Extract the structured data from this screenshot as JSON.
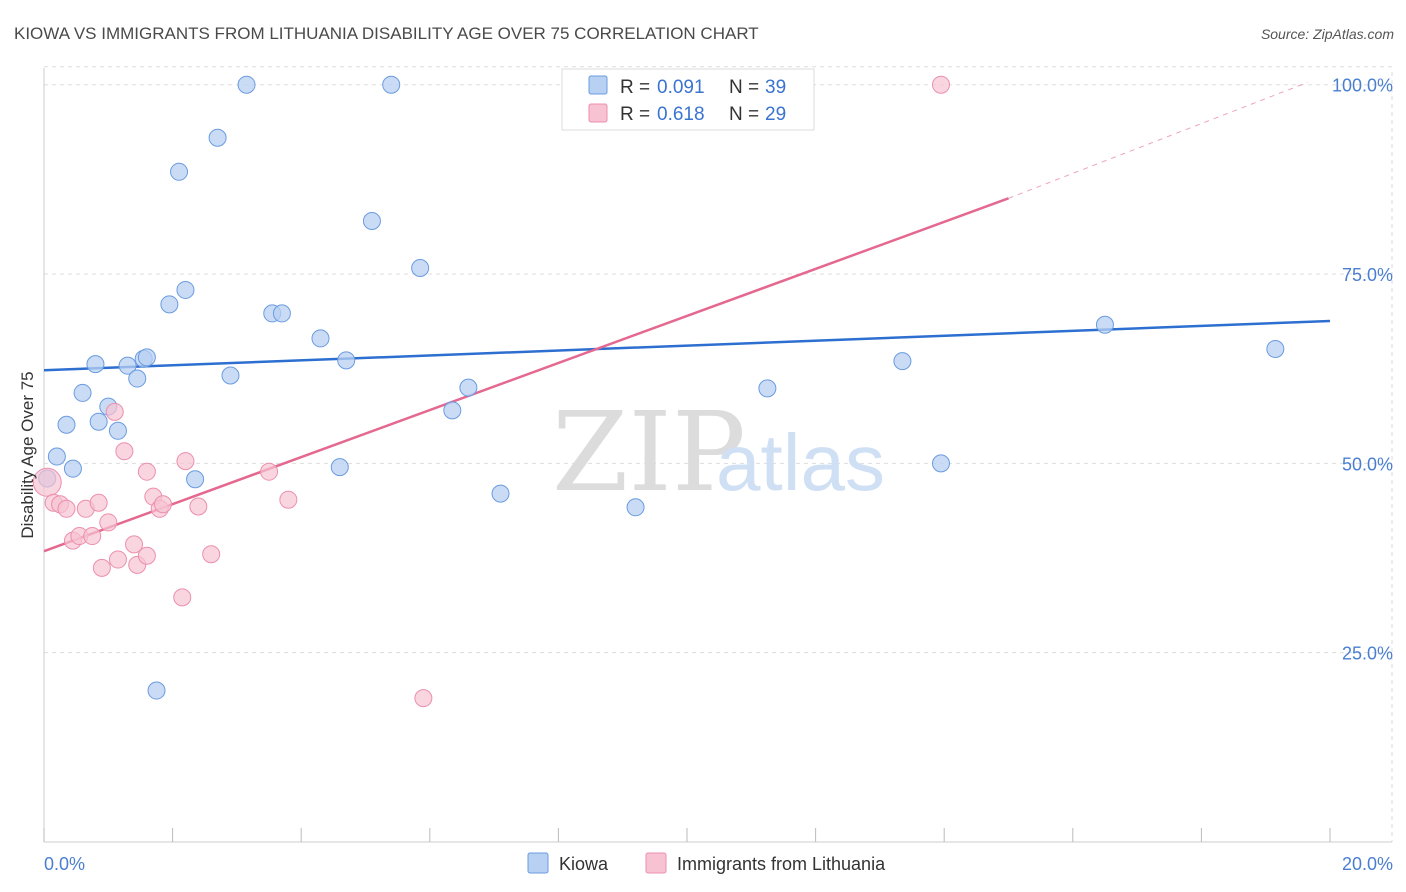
{
  "title": "KIOWA VS IMMIGRANTS FROM LITHUANIA DISABILITY AGE OVER 75 CORRELATION CHART",
  "source": "Source: ZipAtlas.com",
  "watermark": {
    "zip": "ZIP",
    "atlas": "atlas"
  },
  "legend_box": {
    "rows": [
      {
        "r_label": "R =",
        "r_value": "0.091",
        "n_label": "N =",
        "n_value": "39"
      },
      {
        "r_label": "R =",
        "r_value": "0.618",
        "n_label": "N =",
        "n_value": "29"
      }
    ]
  },
  "colors": {
    "kiowa_fill": "#b8d0f2",
    "kiowa_stroke": "#6a9be0",
    "kiowa_line": "#2d6fd0",
    "lith_fill": "#f7c3d3",
    "lith_stroke": "#ec8fae",
    "lith_line": "#e4688f",
    "grid": "#dddddd",
    "axis_text": "#4a7fd0"
  },
  "chart_data": {
    "type": "scatter",
    "title": "KIOWA VS IMMIGRANTS FROM LITHUANIA DISABILITY AGE OVER 75 CORRELATION CHART",
    "xlabel": "",
    "ylabel": "Disability Age Over 75",
    "xlim": [
      0,
      20
    ],
    "ylim": [
      0,
      103
    ],
    "x_ticks": [
      "0.0%",
      "20.0%"
    ],
    "y_ticks": [
      {
        "value": 25,
        "label": "25.0%"
      },
      {
        "value": 50,
        "label": "50.0%"
      },
      {
        "value": 75,
        "label": "75.0%"
      },
      {
        "value": 100,
        "label": "100.0%"
      }
    ],
    "grid": true,
    "legend_position": "bottom",
    "series": [
      {
        "name": "Kiowa",
        "r": 0.091,
        "n": 39,
        "trend": {
          "x0": 0,
          "y0": 62.3,
          "x1": 20,
          "y1": 68.8
        },
        "points": [
          [
            0.05,
            48.0
          ],
          [
            0.2,
            50.9
          ],
          [
            0.35,
            55.1
          ],
          [
            0.45,
            49.3
          ],
          [
            0.6,
            59.3
          ],
          [
            0.8,
            63.1
          ],
          [
            0.85,
            55.5
          ],
          [
            1.0,
            57.5
          ],
          [
            1.15,
            54.3
          ],
          [
            1.3,
            62.9
          ],
          [
            1.45,
            61.2
          ],
          [
            1.55,
            63.8
          ],
          [
            1.6,
            64.0
          ],
          [
            1.75,
            20.0
          ],
          [
            1.95,
            71.0
          ],
          [
            2.1,
            88.5
          ],
          [
            2.2,
            72.9
          ],
          [
            2.35,
            47.9
          ],
          [
            2.7,
            93.0
          ],
          [
            2.9,
            61.6
          ],
          [
            3.15,
            100.0
          ],
          [
            3.55,
            69.8
          ],
          [
            3.7,
            69.8
          ],
          [
            4.3,
            66.5
          ],
          [
            4.6,
            49.5
          ],
          [
            4.7,
            63.6
          ],
          [
            5.1,
            82.0
          ],
          [
            5.4,
            100.0
          ],
          [
            5.85,
            75.8
          ],
          [
            6.35,
            57.0
          ],
          [
            6.6,
            60.0
          ],
          [
            7.1,
            46.0
          ],
          [
            9.2,
            44.2
          ],
          [
            9.45,
            100.0
          ],
          [
            11.25,
            59.9
          ],
          [
            13.35,
            63.5
          ],
          [
            13.95,
            50.0
          ],
          [
            16.5,
            68.3
          ],
          [
            19.15,
            65.1
          ]
        ]
      },
      {
        "name": "Immigrants from Lithuania",
        "r": 0.618,
        "n": 29,
        "trend": {
          "x0": 0,
          "y0": 38.4,
          "x1": 15.0,
          "y1": 85.0,
          "dash_to_x": 19.65,
          "dash_to_y": 100.3
        },
        "points": [
          [
            0.05,
            47.5
          ],
          [
            0.15,
            44.8
          ],
          [
            0.25,
            44.6
          ],
          [
            0.35,
            44.0
          ],
          [
            0.45,
            39.8
          ],
          [
            0.55,
            40.4
          ],
          [
            0.65,
            44.0
          ],
          [
            0.75,
            40.4
          ],
          [
            0.85,
            44.8
          ],
          [
            0.9,
            36.2
          ],
          [
            1.0,
            42.2
          ],
          [
            1.1,
            56.8
          ],
          [
            1.15,
            37.3
          ],
          [
            1.25,
            51.6
          ],
          [
            1.4,
            39.3
          ],
          [
            1.45,
            36.6
          ],
          [
            1.6,
            48.9
          ],
          [
            1.6,
            37.8
          ],
          [
            1.7,
            45.6
          ],
          [
            1.8,
            44.0
          ],
          [
            1.85,
            44.6
          ],
          [
            2.15,
            32.3
          ],
          [
            2.2,
            50.3
          ],
          [
            2.4,
            44.3
          ],
          [
            2.6,
            38.0
          ],
          [
            3.5,
            48.9
          ],
          [
            3.8,
            45.2
          ],
          [
            5.9,
            19.0
          ],
          [
            13.95,
            100.0
          ]
        ]
      }
    ]
  }
}
